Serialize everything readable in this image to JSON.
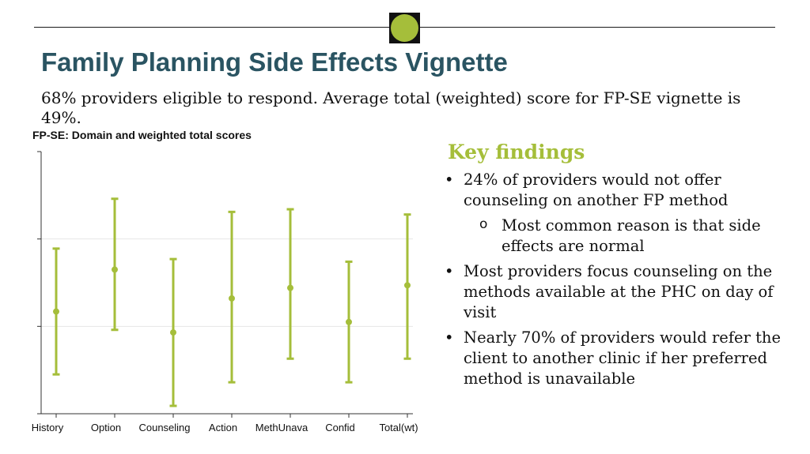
{
  "slide": {
    "title": "Family Planning Side Effects Vignette",
    "subtitle": "68% providers eligible to respond. Average total (weighted) score for FP-SE vignette is 49%.",
    "accent_color": "#a5be3a",
    "title_color": "#2a5462"
  },
  "key_findings": {
    "heading": "Key findings",
    "bullet_char": "•",
    "sub_bullet_char": "o",
    "items": [
      "24% of providers would not offer counseling on another FP method",
      "Most providers focus counseling on the methods available at the PHC on day of visit",
      "Nearly 70% of providers would refer the client to another clinic if her preferred method is unavailable"
    ],
    "sub_items": [
      "Most common reason is that side effects are normal"
    ]
  },
  "chart_data": {
    "type": "errorbar",
    "title": "FP-SE: Domain and weighted total scores",
    "xlabel": "",
    "ylabel": "",
    "categories": [
      "History",
      "Option",
      "Counseling",
      "Action",
      "MethUnava",
      "Confid",
      "Total(wt)"
    ],
    "values": [
      0.39,
      0.55,
      0.31,
      0.44,
      0.48,
      0.35,
      0.49
    ],
    "lower": [
      0.15,
      0.32,
      0.03,
      0.12,
      0.21,
      0.12,
      0.21
    ],
    "upper": [
      0.63,
      0.82,
      0.59,
      0.77,
      0.78,
      0.58,
      0.76
    ],
    "ylim": [
      0,
      1
    ],
    "grid": true,
    "legend": "none",
    "color": "#a5be3a"
  }
}
